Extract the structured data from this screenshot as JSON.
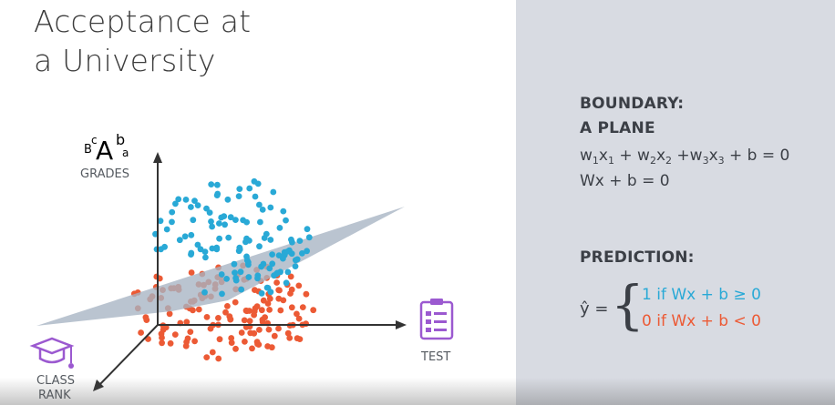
{
  "title": {
    "line1": "Acceptance at",
    "line2": "a University"
  },
  "axes": {
    "grades_label": "GRADES",
    "grades_icon_letters": {
      "B": "B",
      "c": "c",
      "A": "A",
      "b": "b",
      "a": "a"
    },
    "test_label": "TEST",
    "class_rank_line1": "CLASS",
    "class_rank_line2": "RANK"
  },
  "icons": {
    "grades": "letter-grades-icon",
    "test": "test-sheet-icon",
    "class_rank": "graduation-cap-icon"
  },
  "colors": {
    "accent_purple": "#9b59d0",
    "accepted_blue": "#29a9d6",
    "rejected_red": "#ec5a35",
    "plane": "#a6b3c3",
    "right_panel_bg": "#d8dbe2"
  },
  "boundary": {
    "heading_line1": "BOUNDARY:",
    "heading_line2": "A PLANE",
    "eq1": {
      "w1": "w",
      "s1": "1",
      "x1": "x",
      "t1": "1",
      "plus1": " + w",
      "s2": "2",
      "x2": "x",
      "t2": "2",
      "plus2": " +w",
      "s3": "3",
      "x3": "x",
      "t3": "3",
      "rest": " + b = 0"
    },
    "eq2": "Wx + b = 0"
  },
  "prediction": {
    "heading": "PREDICTION:",
    "yhat": "ŷ =",
    "brace": "{",
    "case1": "1 if Wx + b ≥ 0",
    "case2": "0 if Wx + b < 0"
  }
}
